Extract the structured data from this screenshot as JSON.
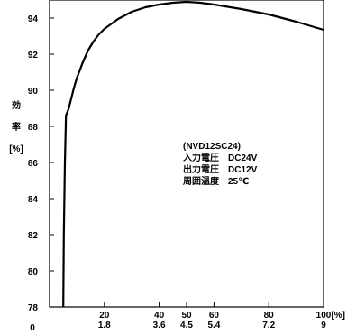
{
  "chart_data": {
    "type": "line",
    "title": "",
    "ylabel": [
      "効",
      "率",
      "[%]"
    ],
    "xlabel_unit": "[%]",
    "ylim": [
      78,
      95
    ],
    "xlim": [
      0,
      100
    ],
    "y_ticks": [
      78,
      80,
      82,
      84,
      86,
      88,
      90,
      92,
      94
    ],
    "x_ticks": [
      {
        "x": 20,
        "label": "20",
        "sub": "1.8"
      },
      {
        "x": 40,
        "label": "40",
        "sub": "3.6"
      },
      {
        "x": 50,
        "label": "50",
        "sub": "4.5"
      },
      {
        "x": 60,
        "label": "60",
        "sub": "5.4"
      },
      {
        "x": 80,
        "label": "80",
        "sub": "7.2"
      },
      {
        "x": 100,
        "label": "100",
        "sub": "9"
      }
    ],
    "x_origin_label": "0",
    "annotation": [
      "(NVD12SC24)",
      "入力電圧　DC24V",
      "出力電圧　DC12V",
      "周囲温度　25℃"
    ],
    "grid": false,
    "series": [
      {
        "x": [
          5,
          5.2,
          5.6,
          6,
          7,
          8,
          9,
          10,
          12,
          14,
          16,
          18,
          20,
          25,
          30,
          35,
          40,
          45,
          50,
          55,
          60,
          70,
          80,
          90,
          100
        ],
        "y": [
          78,
          82,
          86,
          88.6,
          89.0,
          89.6,
          90.2,
          90.7,
          91.5,
          92.2,
          92.7,
          93.1,
          93.4,
          93.95,
          94.35,
          94.6,
          94.75,
          94.85,
          94.9,
          94.85,
          94.75,
          94.5,
          94.2,
          93.8,
          93.35
        ]
      }
    ]
  }
}
